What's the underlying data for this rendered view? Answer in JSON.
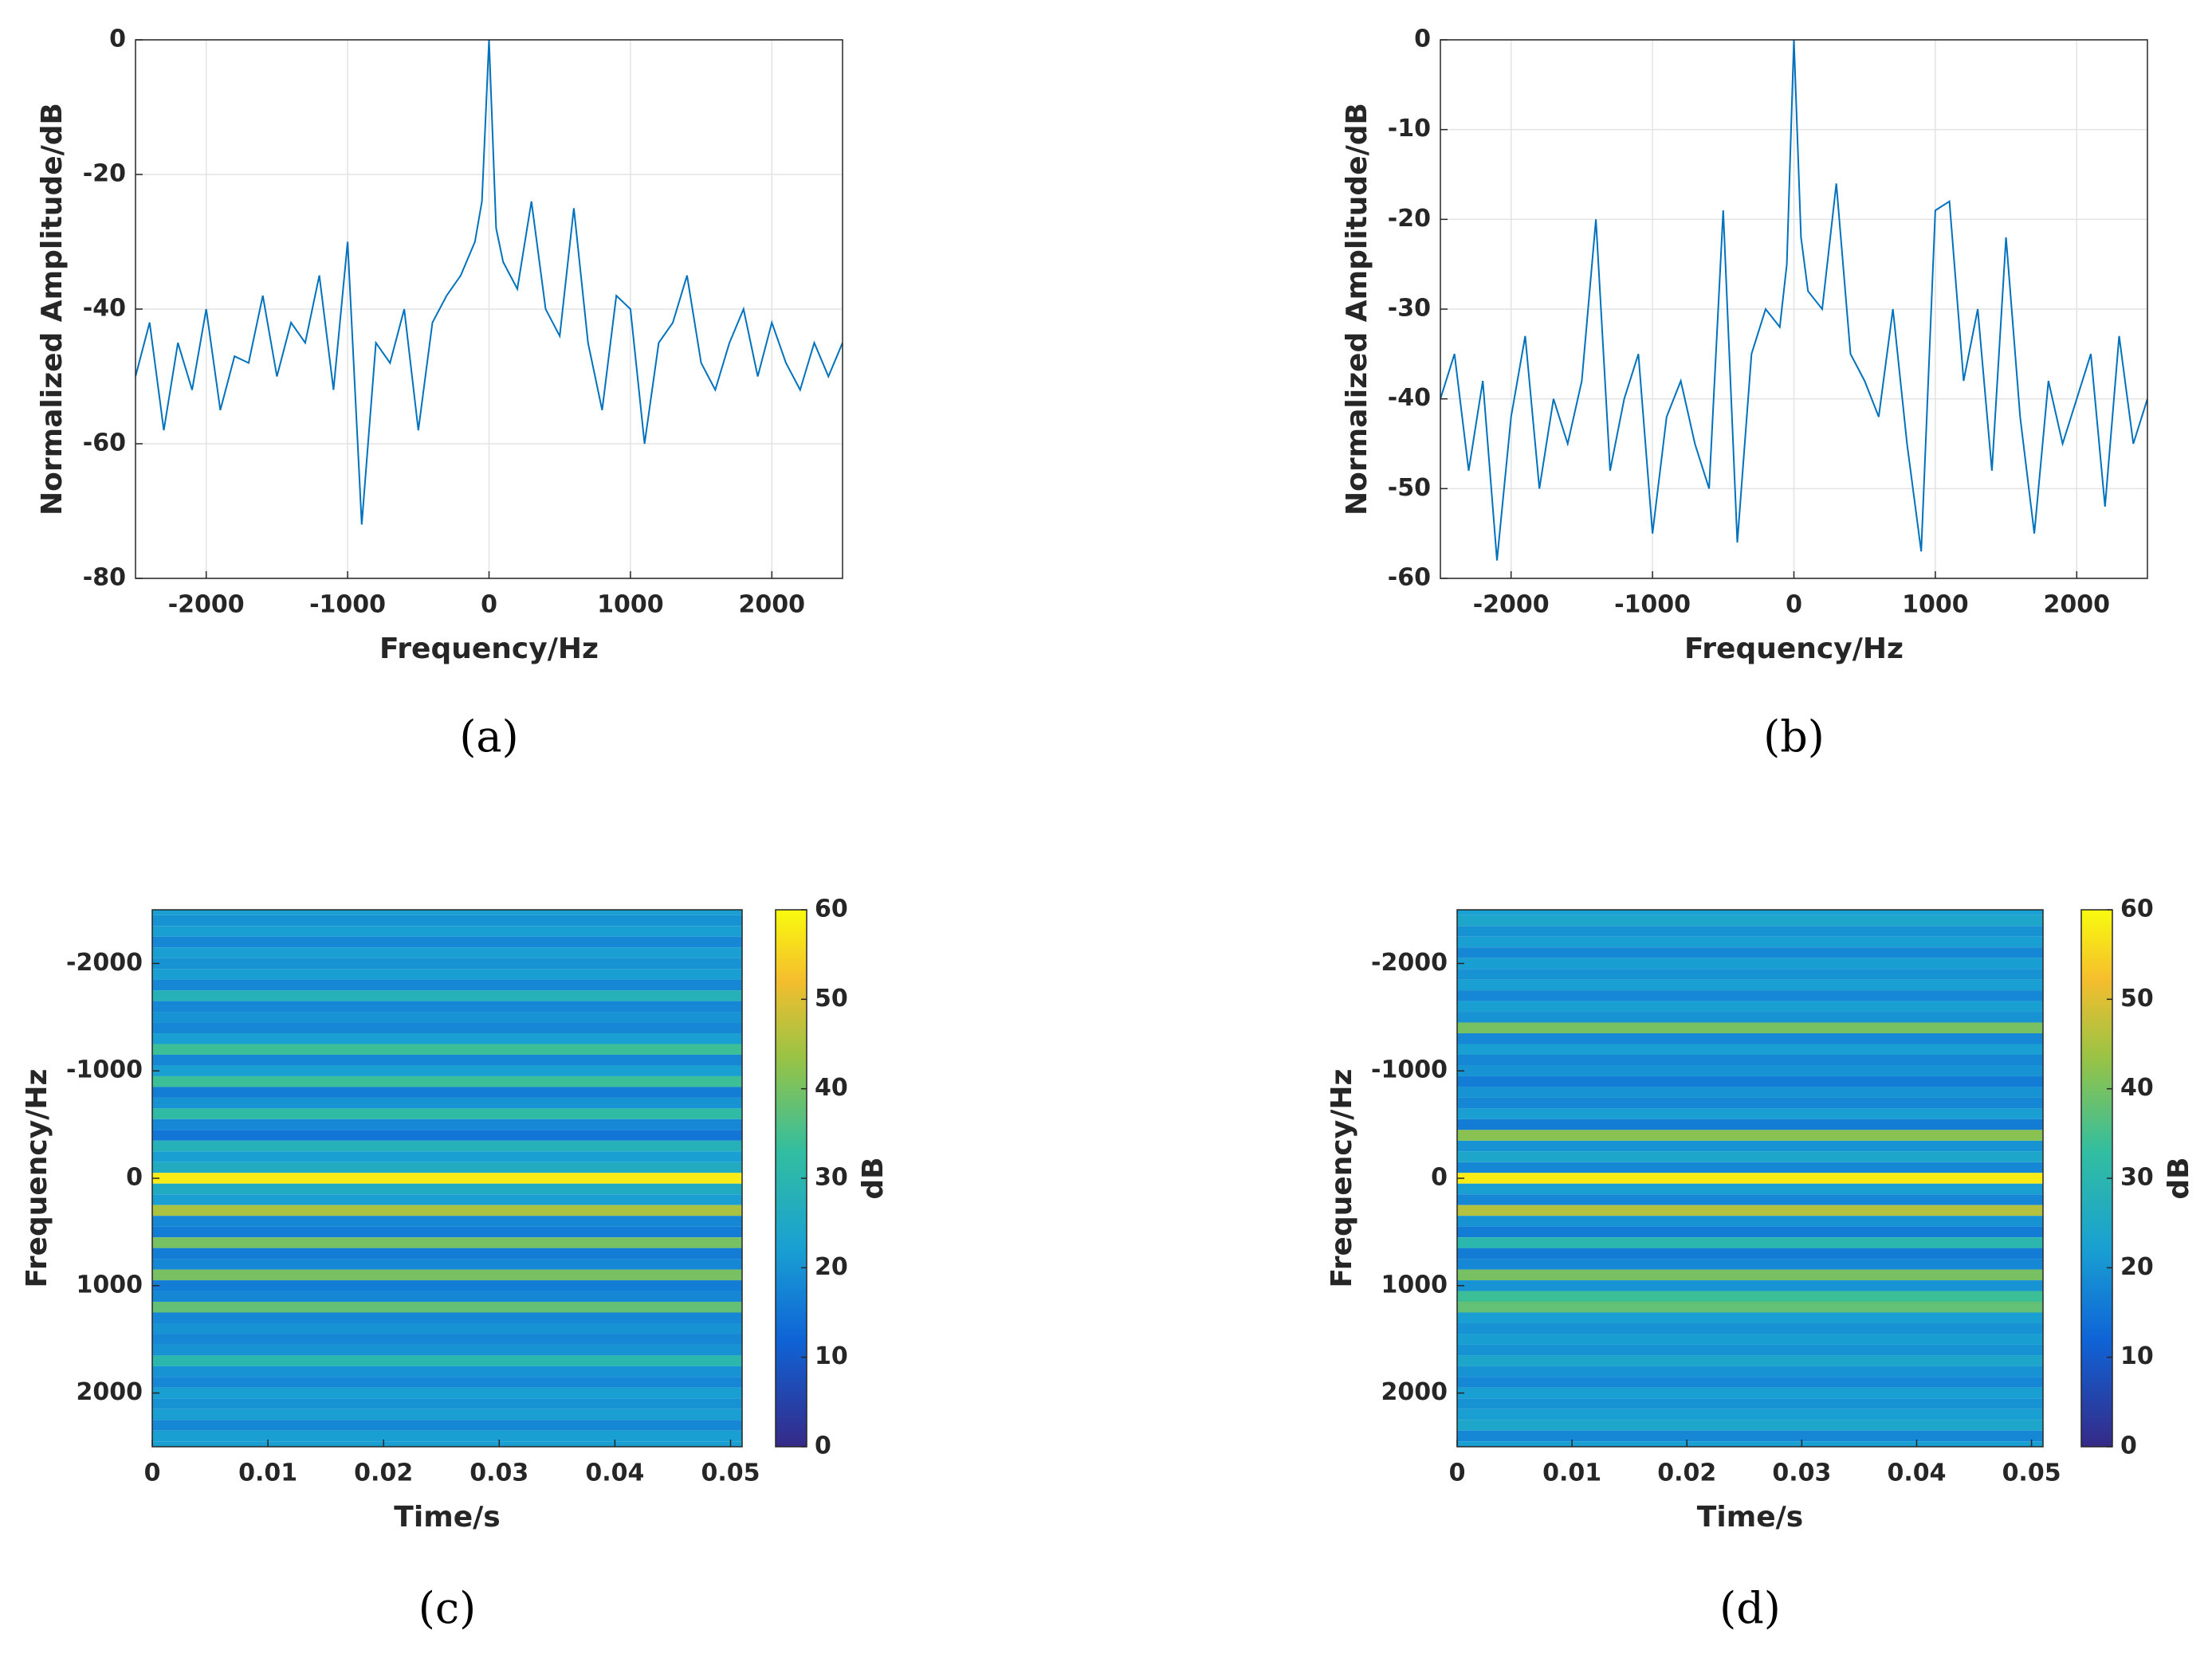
{
  "chart_data": [
    {
      "type": "line",
      "panel_label": "(a)",
      "xlabel": "Frequency/Hz",
      "ylabel": "Normalized Amplitude/dB",
      "color": "#0072bd",
      "grid": true,
      "xlim": [
        -2500,
        2500
      ],
      "xticks": [
        -2000,
        -1000,
        0,
        1000,
        2000
      ],
      "ylim": [
        -80,
        0
      ],
      "yticks": [
        -80,
        -60,
        -40,
        -20,
        0
      ],
      "x": [
        -2500,
        -2400,
        -2300,
        -2200,
        -2100,
        -2000,
        -1900,
        -1800,
        -1700,
        -1600,
        -1500,
        -1400,
        -1300,
        -1200,
        -1100,
        -1000,
        -900,
        -800,
        -700,
        -600,
        -500,
        -400,
        -300,
        -200,
        -100,
        -50,
        0,
        50,
        100,
        200,
        300,
        400,
        500,
        600,
        700,
        800,
        900,
        1000,
        1100,
        1200,
        1300,
        1400,
        1500,
        1600,
        1700,
        1800,
        1900,
        2000,
        2100,
        2200,
        2300,
        2400,
        2500
      ],
      "values": [
        -50,
        -42,
        -58,
        -45,
        -52,
        -40,
        -55,
        -47,
        -48,
        -38,
        -50,
        -42,
        -45,
        -35,
        -52,
        -30,
        -72,
        -45,
        -48,
        -40,
        -58,
        -42,
        -38,
        -35,
        -30,
        -24,
        0,
        -28,
        -33,
        -37,
        -24,
        -40,
        -44,
        -25,
        -45,
        -55,
        -38,
        -40,
        -60,
        -45,
        -42,
        -35,
        -48,
        -52,
        -45,
        -40,
        -50,
        -42,
        -48,
        -52,
        -45,
        -50,
        -45
      ]
    },
    {
      "type": "line",
      "panel_label": "(b)",
      "xlabel": "Frequency/Hz",
      "ylabel": "Normalized Amplitude/dB",
      "color": "#0072bd",
      "grid": true,
      "xlim": [
        -2500,
        2500
      ],
      "xticks": [
        -2000,
        -1000,
        0,
        1000,
        2000
      ],
      "ylim": [
        -60,
        0
      ],
      "yticks": [
        -60,
        -50,
        -40,
        -30,
        -20,
        -10,
        0
      ],
      "x": [
        -2500,
        -2400,
        -2300,
        -2200,
        -2100,
        -2000,
        -1900,
        -1800,
        -1700,
        -1600,
        -1500,
        -1400,
        -1300,
        -1200,
        -1100,
        -1000,
        -900,
        -800,
        -700,
        -600,
        -500,
        -400,
        -300,
        -200,
        -100,
        -50,
        0,
        50,
        100,
        200,
        300,
        400,
        500,
        600,
        700,
        800,
        900,
        1000,
        1100,
        1200,
        1300,
        1400,
        1500,
        1600,
        1700,
        1800,
        1900,
        2000,
        2100,
        2200,
        2300,
        2400,
        2500
      ],
      "values": [
        -40,
        -35,
        -48,
        -38,
        -58,
        -42,
        -33,
        -50,
        -40,
        -45,
        -38,
        -20,
        -48,
        -40,
        -35,
        -55,
        -42,
        -38,
        -45,
        -50,
        -19,
        -56,
        -35,
        -30,
        -32,
        -25,
        0,
        -22,
        -28,
        -30,
        -16,
        -35,
        -38,
        -42,
        -30,
        -45,
        -57,
        -19,
        -18,
        -38,
        -30,
        -48,
        -22,
        -42,
        -55,
        -38,
        -45,
        -40,
        -35,
        -52,
        -33,
        -45,
        -40
      ]
    },
    {
      "type": "heatmap",
      "panel_label": "(c)",
      "xlabel": "Time/s",
      "ylabel": "Frequency/Hz",
      "clabel": "dB",
      "xlim": [
        0,
        0.051
      ],
      "xticks": [
        0,
        0.01,
        0.02,
        0.03,
        0.04,
        0.05
      ],
      "ylim": [
        -2500,
        2500
      ],
      "yticks": [
        -2000,
        -1000,
        0,
        1000,
        2000
      ],
      "y_reversed": true,
      "clim": [
        0,
        60
      ],
      "cticks": [
        0,
        10,
        20,
        30,
        40,
        50,
        60
      ],
      "y": [
        -2500,
        -2400,
        -2300,
        -2200,
        -2100,
        -2000,
        -1900,
        -1800,
        -1700,
        -1600,
        -1500,
        -1400,
        -1300,
        -1200,
        -1100,
        -1000,
        -900,
        -800,
        -700,
        -600,
        -500,
        -400,
        -300,
        -200,
        -100,
        0,
        100,
        200,
        300,
        400,
        500,
        600,
        700,
        800,
        900,
        1000,
        1100,
        1200,
        1300,
        1400,
        1500,
        1600,
        1700,
        1800,
        1900,
        2000,
        2100,
        2200,
        2300,
        2400,
        2500
      ],
      "values": [
        22,
        20,
        22,
        18,
        22,
        20,
        22,
        18,
        28,
        18,
        20,
        18,
        22,
        34,
        18,
        22,
        34,
        16,
        20,
        32,
        18,
        15,
        28,
        22,
        26,
        58,
        26,
        22,
        45,
        18,
        16,
        40,
        16,
        18,
        40,
        16,
        18,
        38,
        18,
        20,
        18,
        20,
        30,
        20,
        18,
        22,
        20,
        22,
        18,
        22,
        22
      ]
    },
    {
      "type": "heatmap",
      "panel_label": "(d)",
      "xlabel": "Time/s",
      "ylabel": "Frequency/Hz",
      "clabel": "dB",
      "xlim": [
        0,
        0.051
      ],
      "xticks": [
        0,
        0.01,
        0.02,
        0.03,
        0.04,
        0.05
      ],
      "ylim": [
        -2500,
        2500
      ],
      "yticks": [
        -2000,
        -1000,
        0,
        1000,
        2000
      ],
      "y_reversed": true,
      "clim": [
        0,
        60
      ],
      "cticks": [
        0,
        10,
        20,
        30,
        40,
        50,
        60
      ],
      "y": [
        -2500,
        -2400,
        -2300,
        -2200,
        -2100,
        -2000,
        -1900,
        -1800,
        -1700,
        -1600,
        -1500,
        -1400,
        -1300,
        -1200,
        -1100,
        -1000,
        -900,
        -800,
        -700,
        -600,
        -500,
        -400,
        -300,
        -200,
        -100,
        0,
        100,
        200,
        300,
        400,
        500,
        600,
        700,
        800,
        900,
        1000,
        1100,
        1200,
        1300,
        1400,
        1500,
        1600,
        1700,
        1800,
        1900,
        2000,
        2100,
        2200,
        2300,
        2400,
        2500
      ],
      "values": [
        22,
        24,
        20,
        22,
        18,
        22,
        20,
        22,
        18,
        22,
        20,
        40,
        18,
        22,
        18,
        20,
        16,
        20,
        18,
        22,
        16,
        42,
        20,
        24,
        18,
        58,
        22,
        18,
        46,
        20,
        16,
        30,
        16,
        18,
        40,
        20,
        34,
        38,
        22,
        20,
        22,
        20,
        24,
        20,
        18,
        22,
        20,
        22,
        24,
        18,
        22
      ]
    }
  ]
}
